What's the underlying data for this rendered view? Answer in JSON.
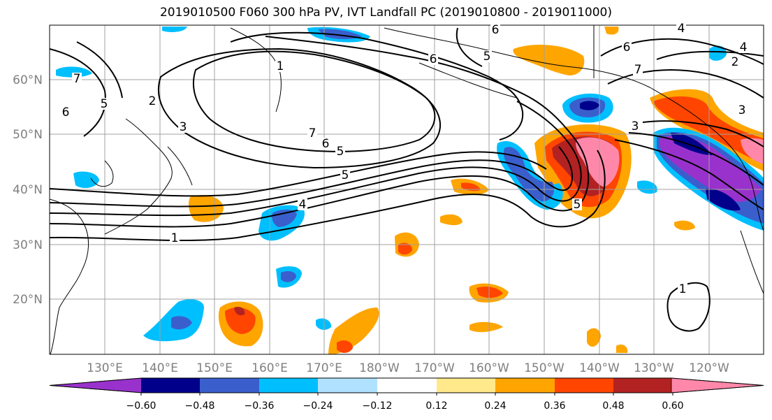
{
  "title": "2019010500 F060 300 hPa PV, IVT Landfall PC (2019010800 - 2019011000)",
  "lat_ticks": [
    "60°N",
    "50°N",
    "40°N",
    "30°N",
    "20°N"
  ],
  "lon_ticks": [
    "130°E",
    "140°E",
    "150°E",
    "160°E",
    "170°E",
    "180°W",
    "170°W",
    "160°W",
    "150°W",
    "140°W",
    "130°W",
    "120°W"
  ],
  "colorbar": {
    "labels": [
      "−0.60",
      "−0.48",
      "−0.36",
      "−0.24",
      "−0.12",
      "0.12",
      "0.24",
      "0.36",
      "0.48",
      "0.60"
    ],
    "colors": [
      "#9932cc",
      "#00008b",
      "#3a5fcd",
      "#00bfff",
      "#b0e2ff",
      "#ffffff",
      "#ffe98a",
      "#ffa500",
      "#ff4500",
      "#b22222",
      "#ff88aa"
    ]
  },
  "contour_labels": [
    "6",
    "1",
    "5",
    "7",
    "6",
    "5",
    "2",
    "3",
    "7",
    "5",
    "6",
    "5",
    "1",
    "4",
    "5",
    "7",
    "6",
    "3",
    "6",
    "4",
    "2",
    "3",
    "1",
    "4"
  ]
}
